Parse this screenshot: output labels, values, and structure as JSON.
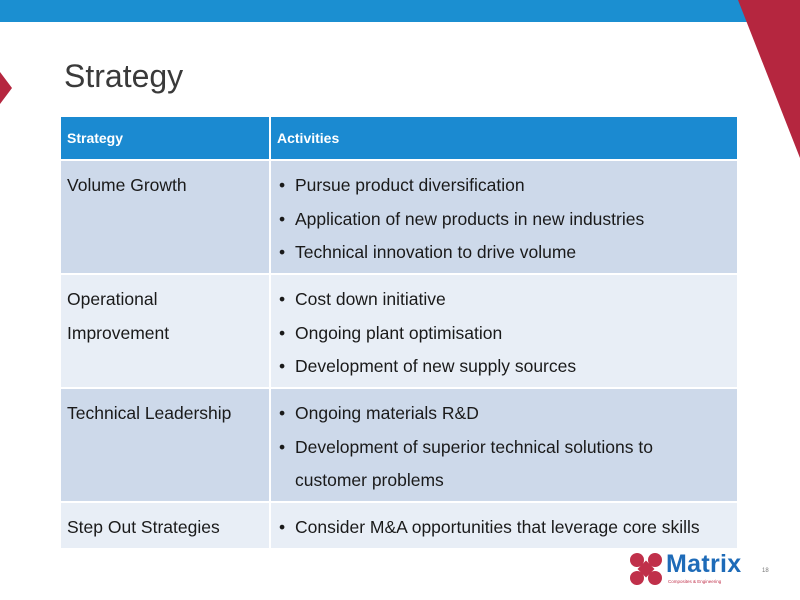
{
  "slide": {
    "title": "Strategy",
    "page_number": "18"
  },
  "colors": {
    "top_bar": "#1b8fd1",
    "accent_red": "#b5263f",
    "header_bg": "#1b8ad1",
    "row_dark": "#cdd9ea",
    "row_light": "#e8eef6"
  },
  "table": {
    "headers": [
      "Strategy",
      "Activities"
    ],
    "rows": [
      {
        "strategy": "Volume Growth",
        "activities": [
          "Pursue product diversification",
          "Application of new products in new industries",
          "Technical innovation to drive volume"
        ]
      },
      {
        "strategy": "Operational Improvement",
        "activities": [
          "Cost down initiative",
          "Ongoing plant optimisation",
          "Development of new supply sources"
        ]
      },
      {
        "strategy": "Technical Leadership",
        "activities": [
          "Ongoing materials R&D",
          "Development of superior technical solutions to customer problems"
        ]
      },
      {
        "strategy": "Step Out Strategies",
        "activities": [
          "Consider M&A opportunities that leverage core skills"
        ]
      }
    ]
  },
  "logo": {
    "name": "Matrix",
    "tagline": "Composites & Engineering",
    "icon": "x-cross-logo-icon"
  }
}
